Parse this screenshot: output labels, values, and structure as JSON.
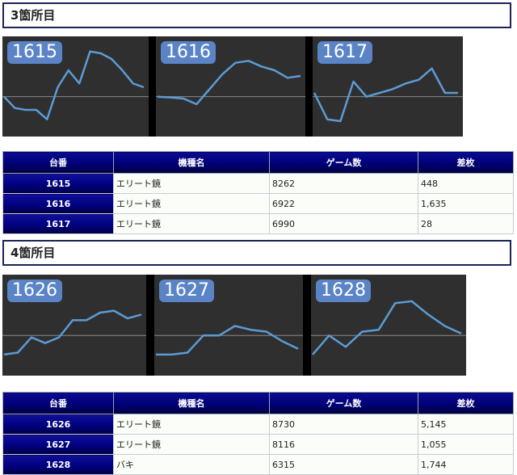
{
  "sections": [
    {
      "title": "3箇所目",
      "charts": [
        {
          "label": "1615",
          "values": [
            0.5,
            0.2,
            0.15,
            0.15,
            -0.1,
            0.75,
            1.2,
            0.85,
            1.7,
            1.65,
            1.5,
            1.2,
            0.85,
            0.75
          ]
        },
        {
          "label": "1616",
          "values": [
            0.5,
            0.48,
            0.45,
            0.3,
            0.7,
            1.1,
            1.4,
            1.45,
            1.3,
            1.2,
            1.0,
            1.05
          ]
        },
        {
          "label": "1617",
          "values": [
            0.6,
            -0.1,
            -0.15,
            0.9,
            0.5,
            0.6,
            0.7,
            0.85,
            0.95,
            1.25,
            0.6,
            0.6
          ]
        }
      ],
      "table": {
        "headers": [
          "台番",
          "機種名",
          "ゲーム数",
          "差枚"
        ],
        "rows": [
          [
            "1615",
            "エリート鏡",
            "8262",
            "448"
          ],
          [
            "1616",
            "エリート鏡",
            "6922",
            "1,635"
          ],
          [
            "1617",
            "エリート鏡",
            "6990",
            "28"
          ]
        ]
      }
    },
    {
      "title": "4箇所目",
      "charts": [
        {
          "label": "1626",
          "values": [
            0.0,
            0.05,
            0.45,
            0.3,
            0.45,
            0.9,
            0.9,
            1.1,
            1.15,
            0.95,
            1.05
          ]
        },
        {
          "label": "1627",
          "values": [
            0.0,
            0.0,
            0.05,
            0.5,
            0.5,
            0.75,
            0.65,
            0.6,
            0.35,
            0.15
          ]
        },
        {
          "label": "1628",
          "values": [
            0.0,
            0.5,
            0.2,
            0.6,
            0.65,
            1.35,
            1.4,
            1.05,
            0.75,
            0.55
          ]
        }
      ],
      "table": {
        "headers": [
          "台番",
          "機種名",
          "ゲーム数",
          "差枚"
        ],
        "rows": [
          [
            "1626",
            "エリート鏡",
            "8730",
            "5,145"
          ],
          [
            "1627",
            "エリート鏡",
            "8116",
            "1,055"
          ],
          [
            "1628",
            "バキ",
            "6315",
            "1,744"
          ]
        ]
      }
    }
  ]
}
